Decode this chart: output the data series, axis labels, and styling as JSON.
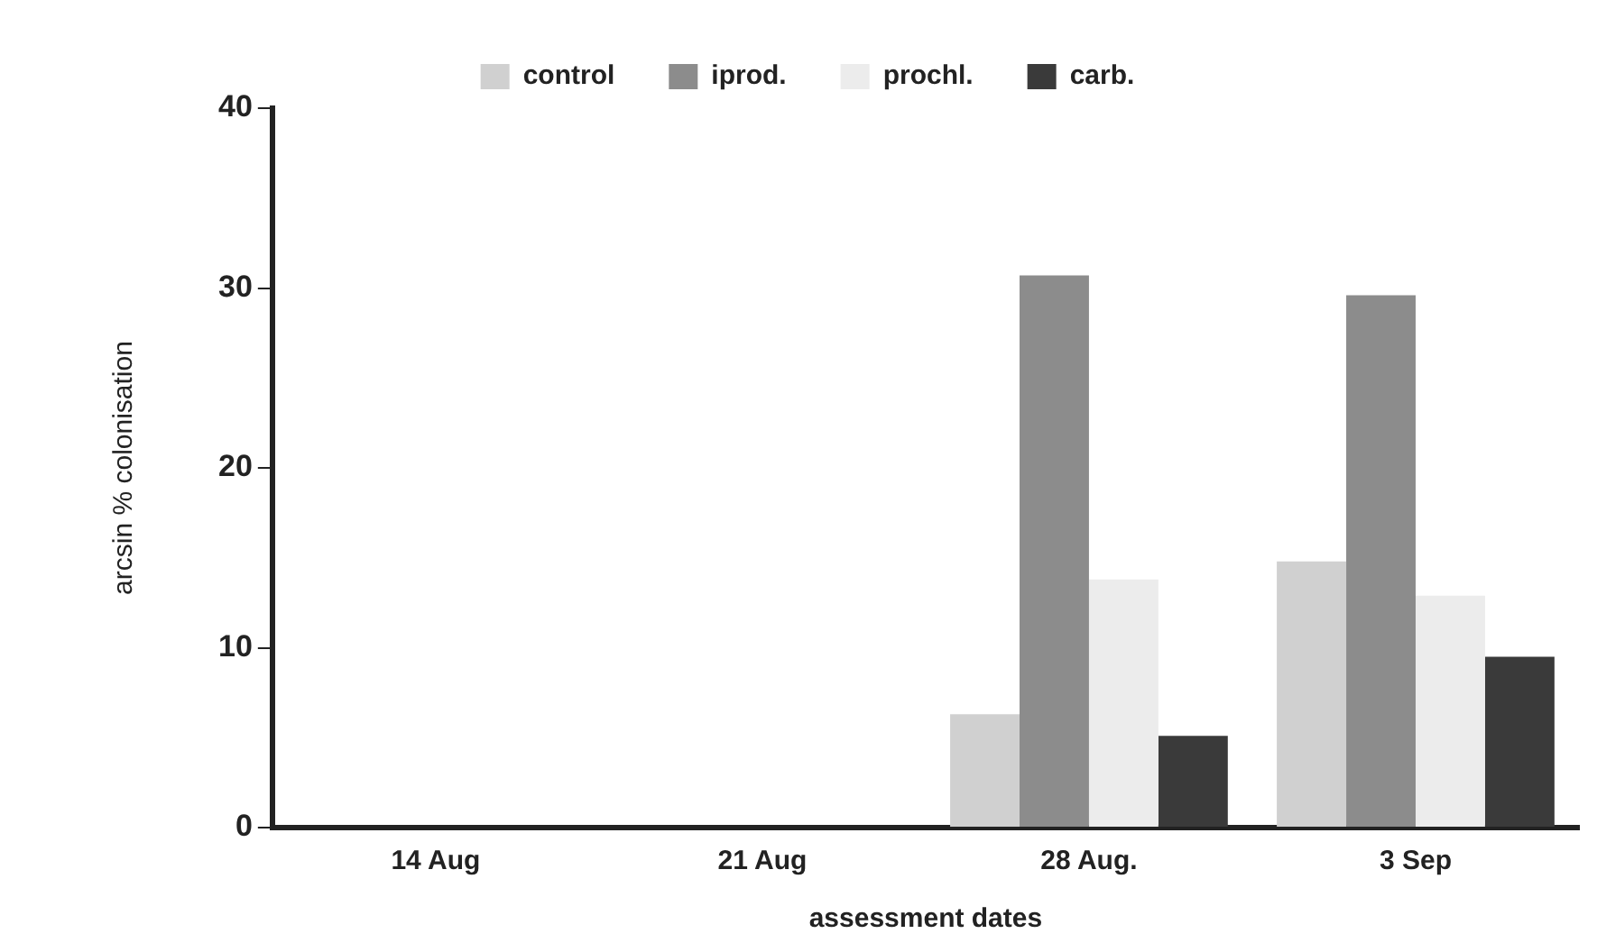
{
  "chart_data": {
    "type": "bar",
    "xlabel": "assessment dates",
    "ylabel": "arcsin % colonisation",
    "categories": [
      "14 Aug",
      "21 Aug",
      "28 Aug.",
      "3 Sep"
    ],
    "series": [
      {
        "name": "control",
        "color": "#d0d0d0",
        "values": [
          0,
          0,
          6.3,
          14.8
        ]
      },
      {
        "name": "iprod.",
        "color": "#8c8c8c",
        "values": [
          0,
          0,
          30.7,
          29.6
        ]
      },
      {
        "name": "prochl.",
        "color": "#ececec",
        "values": [
          0,
          0,
          13.8,
          12.9
        ]
      },
      {
        "name": "carb.",
        "color": "#3a3a3a",
        "values": [
          0,
          0,
          5.1,
          9.5
        ]
      }
    ],
    "ylim": [
      0,
      40
    ],
    "yticks": [
      0,
      10,
      20,
      30,
      40
    ],
    "grid": false,
    "legend": "top"
  }
}
